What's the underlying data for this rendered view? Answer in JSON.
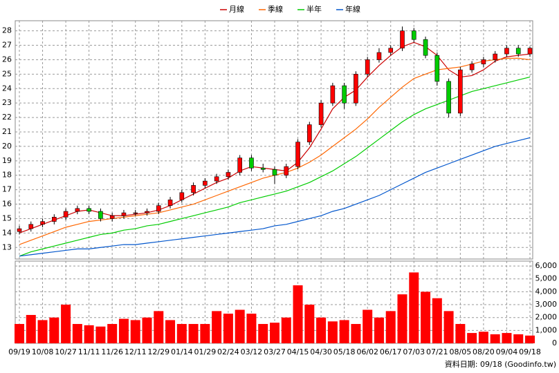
{
  "chart_data": [
    {
      "type": "candlestick",
      "categories": [
        "09/19",
        null,
        "10/08",
        null,
        "10/27",
        null,
        "11/11",
        null,
        "11/26",
        null,
        "12/11",
        null,
        "12/29",
        null,
        "01/14",
        null,
        "01/29",
        null,
        "02/24",
        null,
        "03/12",
        null,
        "03/27",
        null,
        "04/15",
        null,
        "04/30",
        null,
        "05/18",
        null,
        "06/02",
        null,
        "06/17",
        null,
        "07/03",
        null,
        "07/21",
        null,
        "08/05",
        null,
        "08/20",
        null,
        "09/04",
        null,
        "09/18"
      ],
      "open": [
        14.1,
        14.3,
        14.6,
        14.8,
        15.1,
        15.5,
        15.7,
        15.5,
        15.0,
        15.2,
        15.4,
        15.4,
        15.5,
        15.9,
        16.3,
        16.8,
        17.3,
        17.6,
        17.9,
        18.2,
        19.2,
        18.5,
        18.4,
        18.0,
        18.6,
        20.3,
        21.5,
        23.0,
        24.2,
        23.0,
        25.0,
        26.0,
        26.5,
        26.8,
        28.0,
        27.4,
        26.3,
        24.5,
        22.3,
        25.3,
        25.7,
        26.0,
        26.4,
        26.8,
        26.4
      ],
      "high": [
        14.5,
        14.8,
        15.0,
        15.3,
        15.7,
        15.9,
        15.9,
        15.7,
        15.4,
        15.6,
        15.6,
        15.7,
        16.1,
        16.5,
        17.0,
        17.5,
        17.8,
        18.1,
        18.4,
        19.4,
        19.4,
        18.8,
        18.6,
        18.8,
        20.5,
        21.7,
        23.2,
        24.4,
        24.4,
        25.2,
        26.2,
        26.8,
        27.0,
        28.3,
        28.2,
        27.6,
        26.5,
        24.7,
        25.5,
        25.9,
        26.2,
        26.6,
        27.0,
        27.0,
        26.9
      ],
      "low": [
        13.9,
        14.1,
        14.4,
        14.6,
        14.9,
        15.3,
        15.3,
        14.8,
        14.8,
        15.0,
        15.2,
        15.2,
        15.3,
        15.7,
        16.1,
        16.6,
        17.1,
        17.4,
        17.7,
        18.0,
        18.3,
        18.2,
        17.4,
        17.8,
        18.4,
        20.1,
        21.3,
        22.8,
        22.6,
        22.8,
        24.8,
        25.8,
        26.3,
        26.6,
        27.2,
        26.1,
        24.2,
        22.0,
        22.1,
        25.1,
        25.5,
        25.8,
        26.2,
        26.2,
        26.2
      ],
      "close": [
        14.3,
        14.6,
        14.8,
        15.1,
        15.5,
        15.7,
        15.5,
        15.0,
        15.2,
        15.4,
        15.4,
        15.5,
        15.9,
        16.3,
        16.8,
        17.3,
        17.6,
        17.9,
        18.2,
        19.2,
        18.5,
        18.4,
        18.0,
        18.6,
        20.3,
        21.5,
        23.0,
        24.2,
        23.0,
        25.0,
        26.0,
        26.5,
        26.8,
        28.0,
        27.4,
        26.3,
        24.5,
        22.3,
        25.3,
        25.7,
        26.0,
        26.4,
        26.8,
        26.4,
        26.8
      ],
      "up_color": "#ff0000",
      "down_color": "#00cc00",
      "series": [
        {
          "name": "月線",
          "color": "#cc0000",
          "values": [
            14.0,
            14.3,
            14.6,
            14.9,
            15.2,
            15.5,
            15.6,
            15.4,
            15.2,
            15.2,
            15.3,
            15.4,
            15.6,
            15.9,
            16.3,
            16.7,
            17.1,
            17.5,
            17.8,
            18.3,
            18.6,
            18.5,
            18.4,
            18.3,
            18.9,
            19.9,
            21.2,
            22.6,
            23.4,
            23.9,
            24.8,
            25.6,
            26.3,
            26.9,
            27.2,
            26.9,
            26.3,
            25.3,
            24.8,
            24.9,
            25.3,
            25.9,
            26.2,
            26.3,
            26.4
          ]
        },
        {
          "name": "季線",
          "color": "#ff6600",
          "values": [
            13.2,
            13.5,
            13.8,
            14.1,
            14.4,
            14.6,
            14.8,
            14.9,
            15.0,
            15.1,
            15.2,
            15.3,
            15.4,
            15.6,
            15.8,
            16.0,
            16.3,
            16.6,
            16.9,
            17.2,
            17.5,
            17.8,
            18.0,
            18.2,
            18.5,
            18.9,
            19.4,
            20.0,
            20.6,
            21.2,
            21.9,
            22.7,
            23.4,
            24.1,
            24.7,
            25.0,
            25.3,
            25.4,
            25.5,
            25.7,
            25.9,
            26.0,
            26.1,
            26.1,
            26.0
          ]
        },
        {
          "name": "半年",
          "color": "#00cc00",
          "values": [
            12.4,
            12.7,
            12.9,
            13.1,
            13.3,
            13.5,
            13.7,
            13.9,
            14.0,
            14.2,
            14.3,
            14.5,
            14.6,
            14.8,
            15.0,
            15.2,
            15.4,
            15.6,
            15.8,
            16.1,
            16.3,
            16.5,
            16.7,
            16.9,
            17.2,
            17.5,
            17.9,
            18.3,
            18.8,
            19.3,
            19.9,
            20.5,
            21.1,
            21.7,
            22.2,
            22.6,
            22.9,
            23.2,
            23.5,
            23.8,
            24.0,
            24.2,
            24.4,
            24.6,
            24.8
          ]
        },
        {
          "name": "年線",
          "color": "#0055cc",
          "values": [
            12.4,
            12.5,
            12.6,
            12.7,
            12.8,
            12.9,
            12.9,
            13.0,
            13.1,
            13.2,
            13.2,
            13.3,
            13.4,
            13.5,
            13.6,
            13.7,
            13.8,
            13.9,
            14.0,
            14.1,
            14.2,
            14.3,
            14.5,
            14.6,
            14.8,
            15.0,
            15.2,
            15.5,
            15.7,
            16.0,
            16.3,
            16.6,
            17.0,
            17.4,
            17.8,
            18.2,
            18.5,
            18.8,
            19.1,
            19.4,
            19.7,
            20.0,
            20.2,
            20.4,
            20.6
          ]
        }
      ],
      "ylim": [
        12.2,
        28.7
      ],
      "yticks": [
        13,
        14,
        15,
        16,
        17,
        18,
        19,
        20,
        21,
        22,
        23,
        24,
        25,
        26,
        27,
        28
      ],
      "grid": true,
      "legend": "top"
    },
    {
      "type": "bar",
      "values": [
        1500,
        2200,
        1800,
        2000,
        3000,
        1500,
        1400,
        1300,
        1500,
        1900,
        1800,
        2000,
        2500,
        1800,
        1500,
        1500,
        1500,
        2500,
        2300,
        2600,
        2300,
        1500,
        1600,
        2000,
        4500,
        3000,
        2000,
        1700,
        1800,
        1500,
        2600,
        2000,
        2500,
        3800,
        5500,
        4000,
        3500,
        2500,
        1500,
        800,
        900,
        700,
        800,
        700,
        600
      ],
      "color": "#ff0000",
      "ylim": [
        0,
        6380
      ],
      "yticks": [
        0,
        {
          "value": 1000,
          "label": "1,000"
        },
        {
          "value": 2000,
          "label": "2,000"
        },
        {
          "value": 3000,
          "label": "3,000"
        },
        {
          "value": 4000,
          "label": "4,000"
        },
        {
          "value": 5000,
          "label": "5,000"
        },
        {
          "value": 6000,
          "label": "6,000"
        }
      ],
      "annotation": "資料日期: 09/18  (Goodinfo.tw)"
    }
  ]
}
